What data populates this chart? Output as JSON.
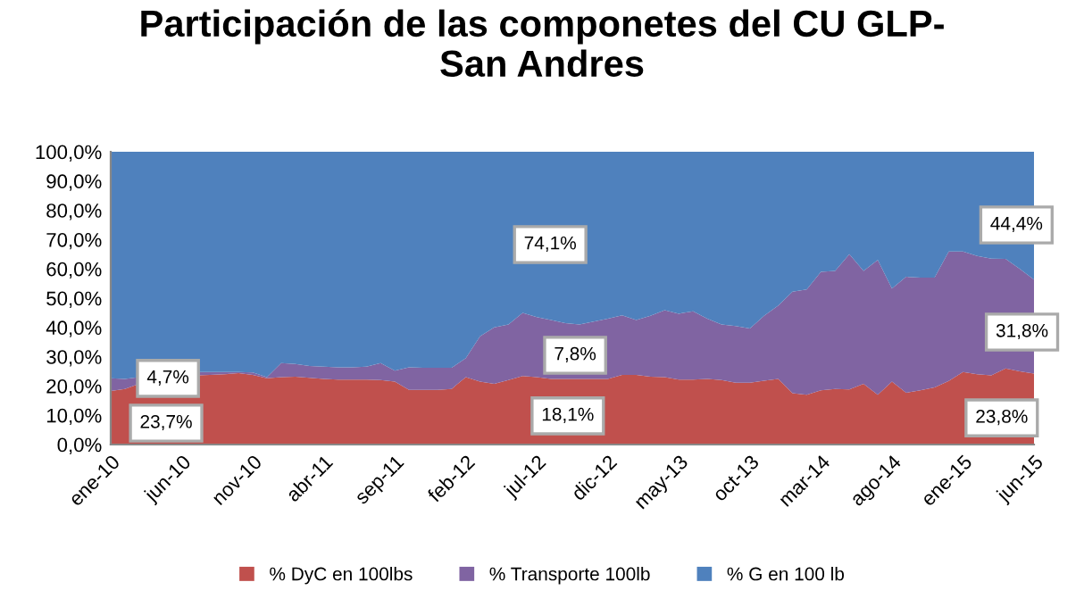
{
  "chart_data": {
    "type": "area",
    "stacked": true,
    "title": "Participación de las componetes del CU GLP-\nSan Andres",
    "categories": [
      "ene-10",
      null,
      null,
      null,
      null,
      "jun-10",
      null,
      null,
      null,
      null,
      "nov-10",
      null,
      null,
      null,
      null,
      "abr-11",
      null,
      null,
      null,
      null,
      "sep-11",
      null,
      null,
      null,
      null,
      "feb-12",
      null,
      null,
      null,
      null,
      "jul-12",
      null,
      null,
      null,
      null,
      "dic-12",
      null,
      null,
      null,
      null,
      "may-13",
      null,
      null,
      null,
      null,
      "oct-13",
      null,
      null,
      null,
      null,
      "mar-14",
      null,
      null,
      null,
      null,
      "ago-14",
      null,
      null,
      null,
      null,
      "ene-15",
      null,
      null,
      null,
      null,
      "jun-15"
    ],
    "series": [
      {
        "name": "% DyC en 100lbs",
        "color": "#c0504d",
        "values": [
          18.3,
          19,
          20.7,
          21.7,
          22.8,
          23.2,
          23.6,
          23.8,
          24,
          24.4,
          23.8,
          22.6,
          23,
          23.2,
          22.8,
          22.4,
          22.2,
          22.2,
          22.2,
          22,
          21.5,
          18.7,
          18.7,
          18.7,
          19,
          23,
          21.5,
          20.7,
          22,
          23.4,
          23,
          22.4,
          22.4,
          22.4,
          22.4,
          22.4,
          23.8,
          23.8,
          23.2,
          23,
          22.2,
          22.2,
          22.4,
          22,
          21.1,
          21.1,
          21.8,
          22.4,
          17.5,
          17,
          18.5,
          19,
          18.8,
          20.7,
          17,
          21.5,
          17.7,
          18.5,
          19.5,
          21.7,
          24.8,
          24,
          23.6,
          26,
          25,
          24.2
        ]
      },
      {
        "name": "% Transporte 100lb",
        "color": "#8064a2",
        "values": [
          4.3,
          3.4,
          2.3,
          2.1,
          1.6,
          1.4,
          1.2,
          1.0,
          0.8,
          0.4,
          0.8,
          0.4,
          4.8,
          4.3,
          4.0,
          4.2,
          4.2,
          4.2,
          4.4,
          5.8,
          3.7,
          7.7,
          7.5,
          7.5,
          7.2,
          6.5,
          15.5,
          19.3,
          19,
          21.6,
          20.5,
          20.1,
          19.1,
          18.6,
          19.6,
          20.6,
          20.3,
          18.7,
          20.8,
          22.9,
          22.5,
          23.3,
          20.6,
          19,
          19.4,
          18.5,
          22.2,
          25.1,
          34.7,
          36,
          40.5,
          40.3,
          46.2,
          38.6,
          46,
          31.8,
          39.6,
          38.5,
          37.5,
          44.2,
          41.1,
          40.4,
          39.9,
          37.4,
          35,
          32.1
        ]
      },
      {
        "name": "% G en 100 lb",
        "color": "#4f81bd",
        "values": [
          77.4,
          77.6,
          77,
          76.2,
          75.6,
          75.4,
          75.2,
          75.2,
          75.2,
          75.2,
          75.4,
          77,
          72.2,
          72.5,
          73.2,
          73.4,
          73.6,
          73.6,
          73.4,
          72.2,
          74.8,
          73.6,
          73.8,
          73.8,
          73.8,
          70.5,
          63,
          60,
          59,
          55,
          56.5,
          57.5,
          58.5,
          59,
          58,
          57,
          55.9,
          57.5,
          56,
          54.1,
          55.3,
          54.5,
          57,
          59,
          59.5,
          60.4,
          56,
          52.5,
          47.8,
          47,
          41,
          40.7,
          35,
          40.7,
          37,
          46.7,
          42.7,
          43,
          43,
          34.1,
          34.1,
          35.6,
          36.5,
          36.6,
          40,
          43.7
        ]
      }
    ],
    "ylim": [
      0,
      100
    ],
    "yticks": [
      {
        "value": 0,
        "label": "0,0%"
      },
      {
        "value": 10,
        "label": "10,0%"
      },
      {
        "value": 20,
        "label": "20,0%"
      },
      {
        "value": 30,
        "label": "30,0%"
      },
      {
        "value": 40,
        "label": "40,0%"
      },
      {
        "value": 50,
        "label": "50,0%"
      },
      {
        "value": 60,
        "label": "60,0%"
      },
      {
        "value": 70,
        "label": "70,0%"
      },
      {
        "value": 80,
        "label": "80,0%"
      },
      {
        "value": 90,
        "label": "90,0%"
      },
      {
        "value": 100,
        "label": "100,0%"
      }
    ],
    "annotations": [
      "23,7%",
      "4,7%",
      "74,1%",
      "7,8%",
      "18,1%",
      "44,4%",
      "31,8%",
      "23,8%"
    ],
    "grid": false,
    "legend": "bottom"
  }
}
